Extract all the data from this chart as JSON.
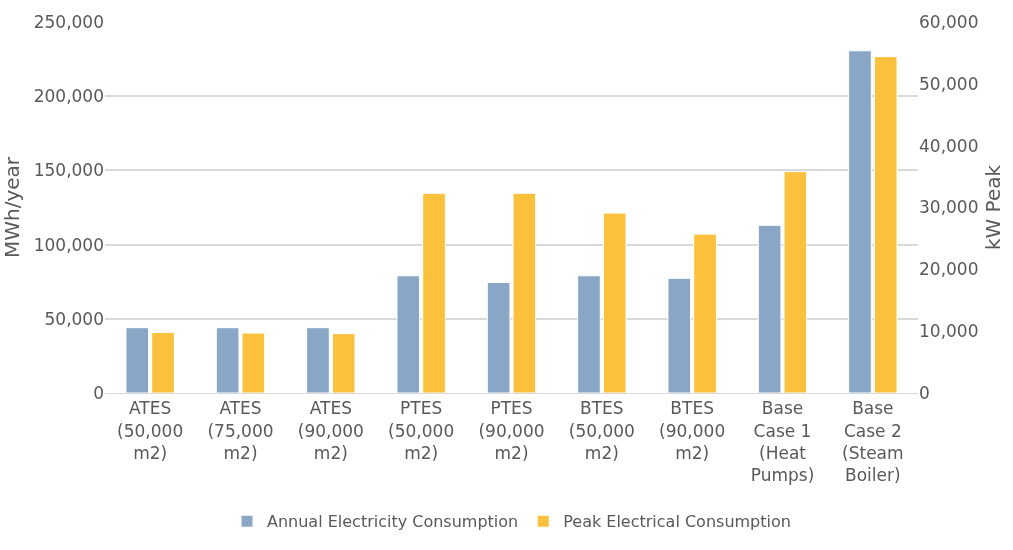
{
  "chart_data": {
    "type": "bar",
    "categories": [
      "ATES (50,000 m2)",
      "ATES (75,000 m2)",
      "ATES (90,000 m2)",
      "PTES (50,000 m2)",
      "PTES (90,000 m2)",
      "BTES (50,000 m2)",
      "BTES (90,000 m2)",
      "Base Case 1 (Heat Pumps)",
      "Base Case 2 (Steam Boiler)"
    ],
    "series": [
      {
        "name": "Annual Electricity Consumption",
        "color": "#89a6c6",
        "values": [
          44000,
          44000,
          44000,
          79000,
          74500,
          79000,
          77300,
          113000,
          230600
        ]
      },
      {
        "name": "Peak Electrical Consumption",
        "color": "#fbc03c",
        "axis": "y2",
        "values": [
          9800,
          9700,
          9600,
          32300,
          32300,
          29100,
          25700,
          35800,
          54400
        ]
      }
    ],
    "ylabel": "MWh/year",
    "y2label": "kW Peak",
    "ylim": [
      0,
      250000
    ],
    "yticks": [
      {
        "value": 0,
        "label": "0"
      },
      {
        "value": 50000,
        "label": "50,000"
      },
      {
        "value": 100000,
        "label": "100,000"
      },
      {
        "value": 150000,
        "label": "150,000"
      },
      {
        "value": 200000,
        "label": "200,000"
      },
      {
        "value": 250000,
        "label": "250,000"
      }
    ],
    "y2lim": [
      0,
      60000
    ],
    "y2ticks": [
      {
        "value": 0,
        "label": "0"
      },
      {
        "value": 10000,
        "label": "10,000"
      },
      {
        "value": 20000,
        "label": "20,000"
      },
      {
        "value": 30000,
        "label": "30,000"
      },
      {
        "value": 40000,
        "label": "40,000"
      },
      {
        "value": 50000,
        "label": "50,000"
      },
      {
        "value": 60000,
        "label": "60,000"
      }
    ],
    "grid": "y",
    "legend": "bottom"
  }
}
